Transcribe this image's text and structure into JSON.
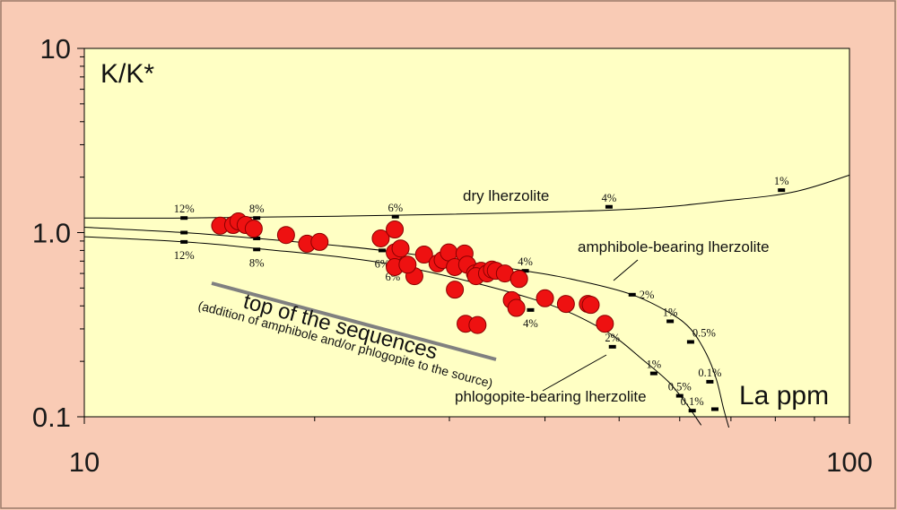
{
  "chart_data": {
    "type": "scatter",
    "x_scale": "log",
    "y_scale": "log",
    "xlim": [
      10,
      100
    ],
    "ylim": [
      0.1,
      10
    ],
    "x_tick_labels": [
      {
        "v": 10,
        "t": "10"
      },
      {
        "v": 100,
        "t": "100"
      }
    ],
    "y_tick_labels": [
      {
        "v": 10,
        "t": "10"
      },
      {
        "v": 1,
        "t": "1.0"
      },
      {
        "v": 0.1,
        "t": "0.1"
      }
    ],
    "ylabel": "K/K*",
    "xlabel": "La ppm",
    "colors": {
      "background": "#f9cbb5",
      "plot_bg": "#ffffc4",
      "points": "#ee1111",
      "point_stroke": "#8a0000",
      "trend": "#808080",
      "curve": "#000000"
    },
    "points": [
      {
        "x": 15.05,
        "y": 1.09
      },
      {
        "x": 15.65,
        "y": 1.1
      },
      {
        "x": 15.9,
        "y": 1.15
      },
      {
        "x": 16.25,
        "y": 1.1
      },
      {
        "x": 16.65,
        "y": 1.05
      },
      {
        "x": 18.35,
        "y": 0.97
      },
      {
        "x": 19.55,
        "y": 0.87
      },
      {
        "x": 20.3,
        "y": 0.89
      },
      {
        "x": 24.4,
        "y": 0.93
      },
      {
        "x": 25.45,
        "y": 1.04
      },
      {
        "x": 25.45,
        "y": 0.78
      },
      {
        "x": 25.9,
        "y": 0.82
      },
      {
        "x": 25.45,
        "y": 0.65
      },
      {
        "x": 27.0,
        "y": 0.58
      },
      {
        "x": 26.45,
        "y": 0.67
      },
      {
        "x": 27.8,
        "y": 0.76
      },
      {
        "x": 28.95,
        "y": 0.68
      },
      {
        "x": 29.4,
        "y": 0.71
      },
      {
        "x": 29.95,
        "y": 0.78
      },
      {
        "x": 30.5,
        "y": 0.65
      },
      {
        "x": 31.4,
        "y": 0.77
      },
      {
        "x": 31.65,
        "y": 0.67
      },
      {
        "x": 32.4,
        "y": 0.6
      },
      {
        "x": 33.0,
        "y": 0.62
      },
      {
        "x": 32.5,
        "y": 0.58
      },
      {
        "x": 33.6,
        "y": 0.6
      },
      {
        "x": 34.1,
        "y": 0.63
      },
      {
        "x": 34.5,
        "y": 0.62
      },
      {
        "x": 35.45,
        "y": 0.6
      },
      {
        "x": 37.0,
        "y": 0.56
      },
      {
        "x": 30.5,
        "y": 0.49
      },
      {
        "x": 36.2,
        "y": 0.43
      },
      {
        "x": 36.7,
        "y": 0.39
      },
      {
        "x": 31.5,
        "y": 0.32
      },
      {
        "x": 32.65,
        "y": 0.315
      },
      {
        "x": 40.0,
        "y": 0.44
      },
      {
        "x": 42.6,
        "y": 0.41
      },
      {
        "x": 45.5,
        "y": 0.41
      },
      {
        "x": 45.9,
        "y": 0.405
      },
      {
        "x": 47.9,
        "y": 0.32
      }
    ],
    "curves": [
      {
        "name": "dry lherzolite",
        "points": [
          [
            10,
            1.2
          ],
          [
            13.5,
            1.2
          ],
          [
            25,
            1.24
          ],
          [
            50,
            1.33
          ],
          [
            70,
            1.5
          ],
          [
            85,
            1.67
          ],
          [
            100,
            2.05
          ]
        ],
        "markers": [
          {
            "x": 13.5,
            "y": 1.2,
            "label": "12%",
            "pos": "above"
          },
          {
            "x": 16.8,
            "y": 1.2,
            "label": "8%",
            "pos": "above"
          },
          {
            "x": 25.5,
            "y": 1.22,
            "label": "6%",
            "pos": "above"
          },
          {
            "x": 48.5,
            "y": 1.38,
            "label": "4%",
            "pos": "above"
          },
          {
            "x": 81.5,
            "y": 1.7,
            "label": "1%",
            "pos": "above"
          }
        ]
      },
      {
        "name": "amphibole-bearing lherzolite",
        "points": [
          [
            10,
            1.07
          ],
          [
            13.5,
            1.0
          ],
          [
            16.8,
            0.93
          ],
          [
            24.5,
            0.8
          ],
          [
            37.7,
            0.62
          ],
          [
            45,
            0.54
          ],
          [
            52,
            0.46
          ],
          [
            58,
            0.37
          ],
          [
            62,
            0.3
          ],
          [
            65,
            0.22
          ],
          [
            67,
            0.16
          ],
          [
            68.5,
            0.11
          ],
          [
            70,
            0.08
          ]
        ],
        "markers": [
          {
            "x": 13.5,
            "y": 1.0,
            "label": "",
            "pos": "above"
          },
          {
            "x": 16.8,
            "y": 0.93,
            "label": "",
            "pos": "above"
          },
          {
            "x": 24.5,
            "y": 0.8,
            "label": "6%",
            "pos": "below"
          },
          {
            "x": 37.7,
            "y": 0.62,
            "label": "4%",
            "pos": "above"
          },
          {
            "x": 52,
            "y": 0.46,
            "label": "2%",
            "pos": "right"
          },
          {
            "x": 58.3,
            "y": 0.33,
            "label": "1%",
            "pos": "above"
          },
          {
            "x": 62,
            "y": 0.255,
            "label": "0.5%",
            "pos": "above-right"
          },
          {
            "x": 65.7,
            "y": 0.155,
            "label": "0.1%",
            "pos": "above"
          },
          {
            "x": 66.7,
            "y": 0.11,
            "label": "",
            "pos": "above"
          }
        ]
      },
      {
        "name": "phlogopite-bearing lherzolite",
        "points": [
          [
            10,
            0.95
          ],
          [
            13.5,
            0.89
          ],
          [
            16.8,
            0.82
          ],
          [
            25.3,
            0.67
          ],
          [
            38.3,
            0.44
          ],
          [
            47.5,
            0.3
          ],
          [
            54,
            0.2
          ],
          [
            58,
            0.155
          ],
          [
            61,
            0.12
          ],
          [
            64,
            0.09
          ]
        ],
        "markers": [
          {
            "x": 13.5,
            "y": 0.89,
            "label": "12%",
            "pos": "below"
          },
          {
            "x": 16.8,
            "y": 0.81,
            "label": "8%",
            "pos": "below"
          },
          {
            "x": 25.3,
            "y": 0.68,
            "label": "6%",
            "pos": "below"
          },
          {
            "x": 38.3,
            "y": 0.38,
            "label": "4%",
            "pos": "below"
          },
          {
            "x": 49,
            "y": 0.24,
            "label": "2%",
            "pos": "above"
          },
          {
            "x": 55.5,
            "y": 0.172,
            "label": "1%",
            "pos": "above"
          },
          {
            "x": 60,
            "y": 0.13,
            "label": "0.5%",
            "pos": "above"
          },
          {
            "x": 62.3,
            "y": 0.108,
            "label": "0.1%",
            "pos": "above"
          }
        ]
      }
    ],
    "annotations": {
      "dry": "dry lherzolite",
      "amphibole": "amphibole-bearing lherzolite",
      "phlogopite": "phlogopite-bearing lherzolite",
      "top": "top of the sequences",
      "top_sub": "(addition of amphibole and/or phlogopite to the source)"
    }
  }
}
